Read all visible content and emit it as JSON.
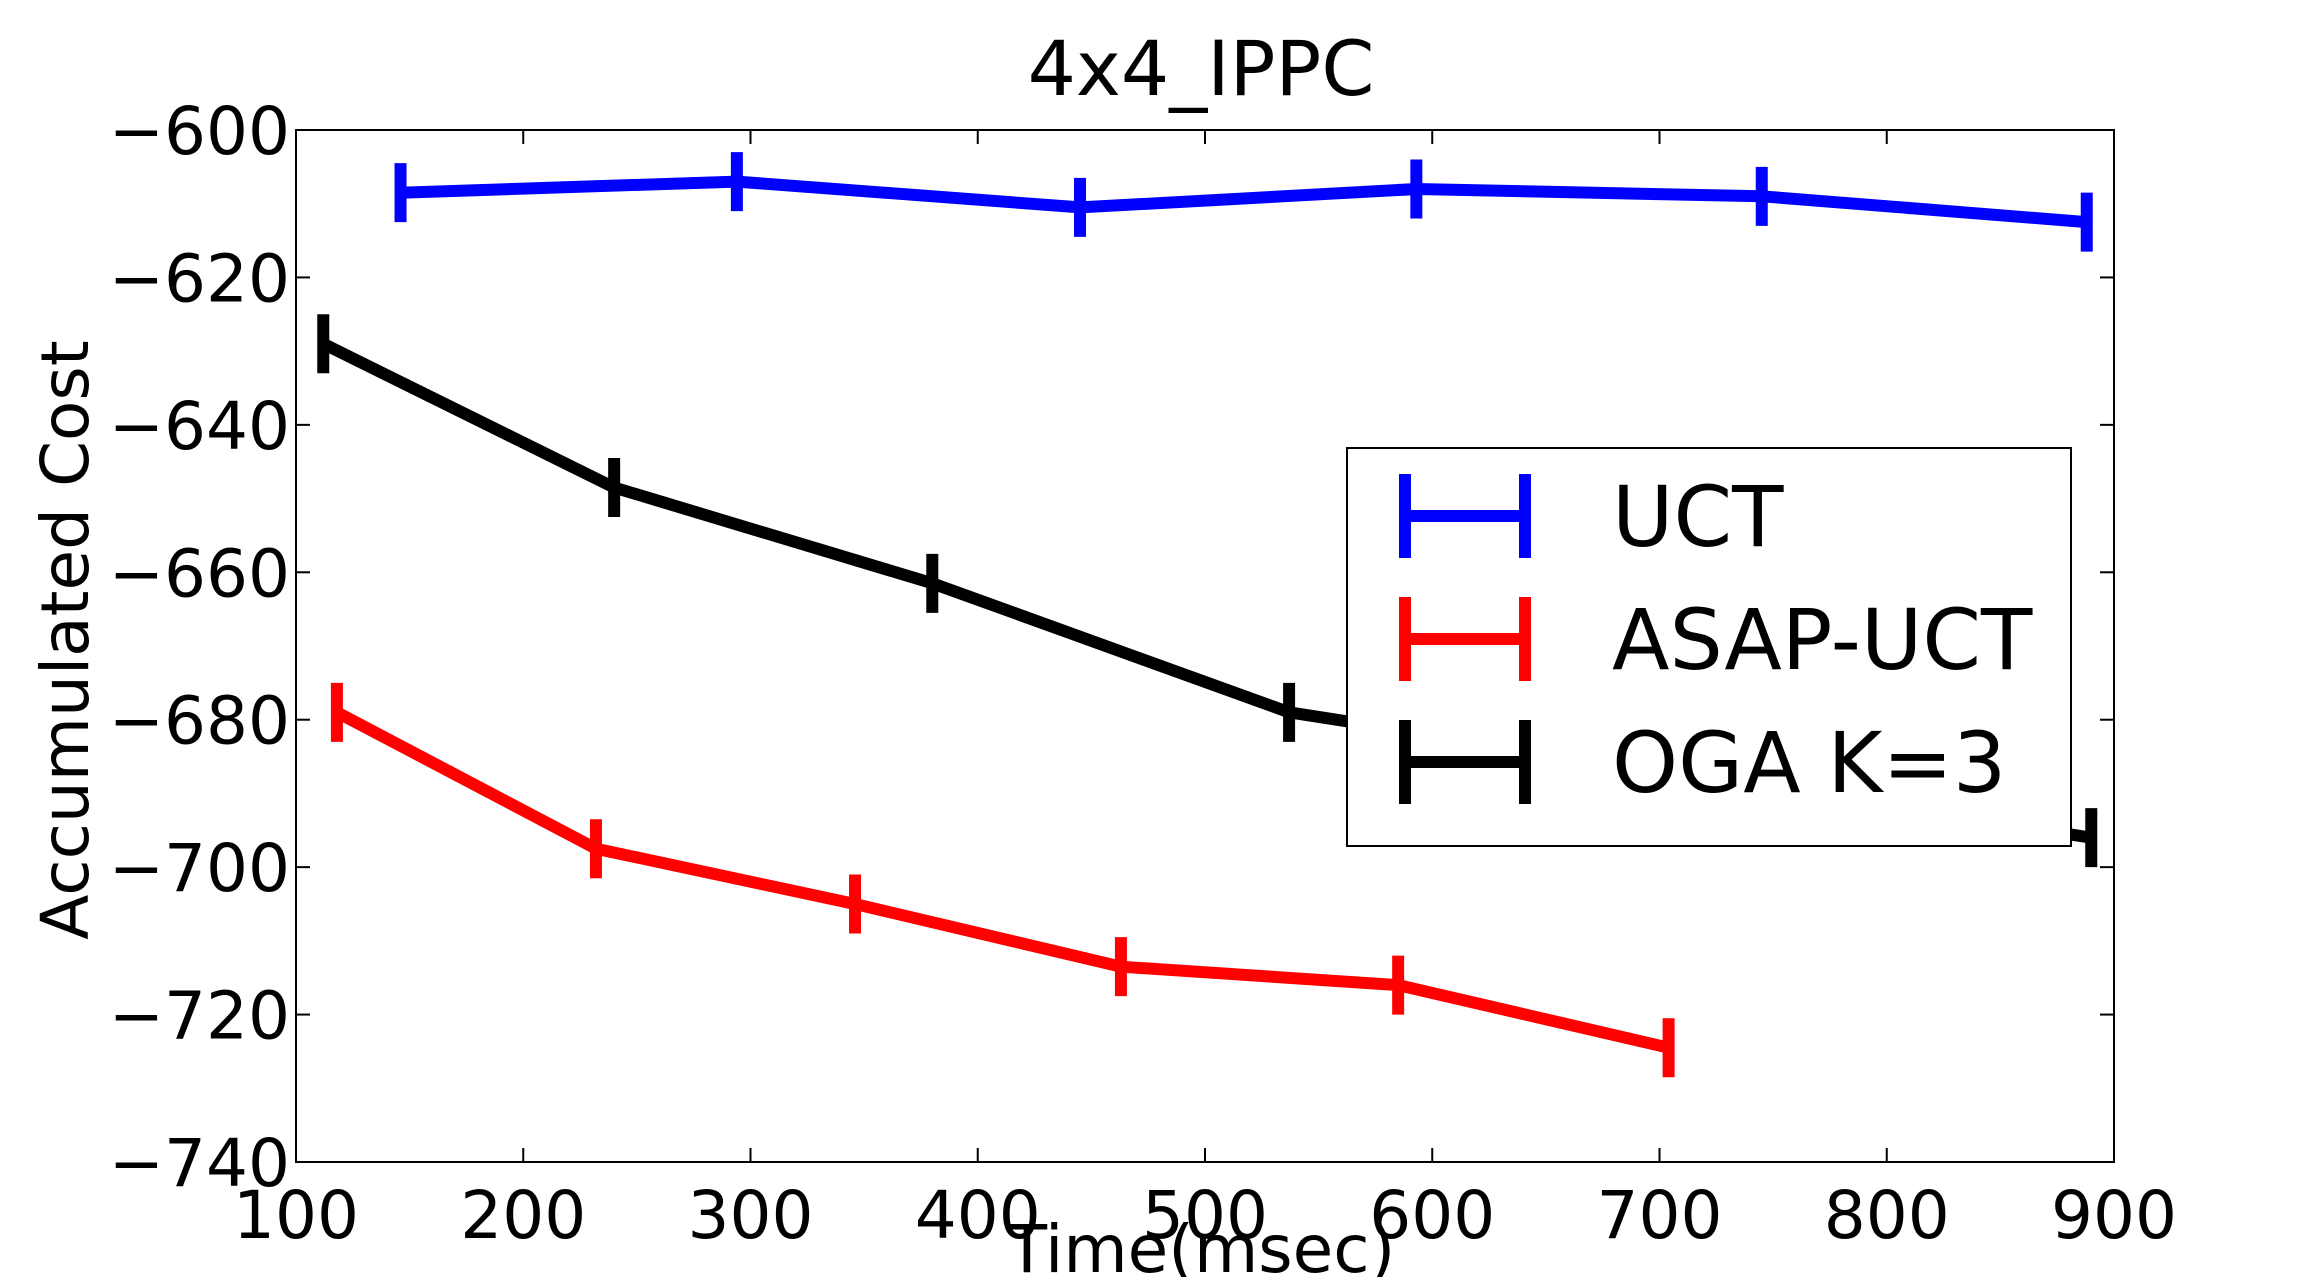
{
  "chart_data": {
    "type": "line",
    "title": "4x4_IPPC",
    "xlabel": "Time(msec)",
    "ylabel": "Accumulated Cost",
    "xlim": [
      100,
      900
    ],
    "ylim": [
      -740,
      -600
    ],
    "xticks": [
      100,
      200,
      300,
      400,
      500,
      600,
      700,
      800,
      900
    ],
    "yticks": [
      -600,
      -620,
      -640,
      -660,
      -680,
      -700,
      -720,
      -740
    ],
    "xtick_labels": [
      "100",
      "200",
      "300",
      "400",
      "500",
      "600",
      "700",
      "800",
      "900"
    ],
    "ytick_labels": [
      "−600",
      "−620",
      "−640",
      "−660",
      "−680",
      "−700",
      "−720",
      "−740"
    ],
    "grid": false,
    "legend_position": "center-right",
    "series": [
      {
        "name": "UCT",
        "color": "#0000ff",
        "x": [
          146,
          294,
          445,
          593,
          745,
          888
        ],
        "y": [
          -608.5,
          -607,
          -610.5,
          -608,
          -609,
          -612.5
        ],
        "yerr": [
          4,
          4,
          4,
          4,
          4,
          4
        ]
      },
      {
        "name": "ASAP-UCT",
        "color": "#ff0000",
        "x": [
          118,
          232,
          346,
          463,
          585,
          704
        ],
        "y": [
          -679,
          -697.5,
          -705,
          -713.5,
          -716,
          -724.5
        ],
        "yerr": [
          4,
          4,
          4,
          4,
          4,
          4
        ]
      },
      {
        "name": "OGA K=3",
        "color": "#000000",
        "x": [
          112,
          240,
          380,
          537,
          890
        ],
        "y": [
          -629,
          -648.5,
          -661.5,
          -679,
          -696
        ],
        "yerr": [
          4,
          4,
          4,
          4,
          4
        ]
      }
    ]
  }
}
